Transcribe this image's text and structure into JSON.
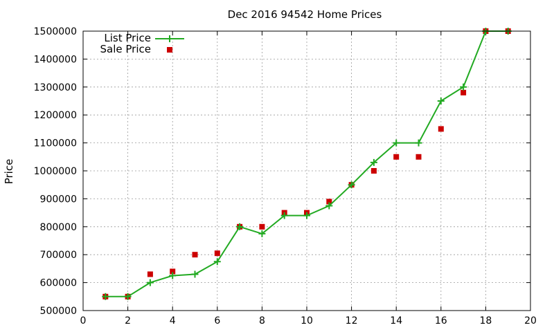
{
  "chart_data": {
    "type": "line",
    "title": "Dec 2016 94542 Home Prices",
    "xlabel": "",
    "ylabel": "Price",
    "xlim": [
      0,
      20
    ],
    "ylim": [
      500000,
      1500000
    ],
    "grid": true,
    "legend_position": "top-left",
    "xticks": [
      "0",
      "2",
      "4",
      "6",
      "8",
      "10",
      "12",
      "14",
      "16",
      "18",
      "20"
    ],
    "yticks": [
      "500000",
      "600000",
      "700000",
      "800000",
      "900000",
      "1000000",
      "1100000",
      "1200000",
      "1300000",
      "1400000",
      "1500000"
    ],
    "series": [
      {
        "name": "List Price",
        "style": "line+marker",
        "marker": "plus",
        "color": "#22aa22",
        "x": [
          1,
          2,
          3,
          4,
          5,
          6,
          7,
          8,
          9,
          10,
          11,
          12,
          13,
          14,
          15,
          16,
          17,
          18,
          19
        ],
        "y": [
          550000,
          550000,
          600000,
          625000,
          630000,
          675000,
          800000,
          775000,
          840000,
          840000,
          875000,
          950000,
          1030000,
          1100000,
          1100000,
          1250000,
          1300000,
          1500000,
          1500000
        ]
      },
      {
        "name": "Sale Price",
        "style": "marker",
        "marker": "square",
        "color": "#cc0000",
        "x": [
          1,
          2,
          3,
          4,
          5,
          6,
          7,
          8,
          9,
          10,
          11,
          12,
          13,
          14,
          15,
          16,
          17,
          18,
          19
        ],
        "y": [
          550000,
          550000,
          630000,
          640000,
          700000,
          705000,
          800000,
          800000,
          850000,
          850000,
          890000,
          950000,
          1000000,
          1050000,
          1050000,
          1150000,
          1280000,
          1500000,
          1500000
        ]
      }
    ]
  }
}
